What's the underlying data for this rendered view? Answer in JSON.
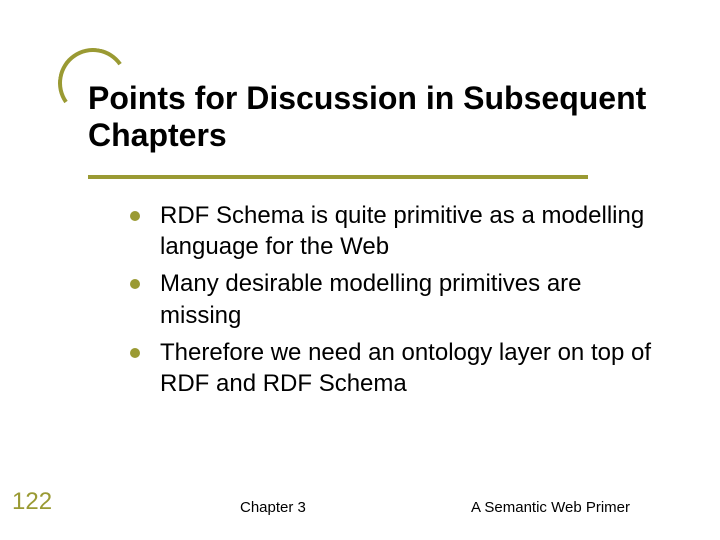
{
  "colors": {
    "accent": "#9a9a33",
    "text": "#000000",
    "background": "#ffffff"
  },
  "title": "Points for Discussion in Subsequent Chapters",
  "bullets": [
    "RDF Schema is quite primitive as a modelling language for the Web",
    "Many desirable modelling primitives are missing",
    "Therefore we need an ontology layer on top of RDF and RDF Schema"
  ],
  "slide_number": "122",
  "footer_center": "Chapter 3",
  "footer_right": "A Semantic Web Primer"
}
